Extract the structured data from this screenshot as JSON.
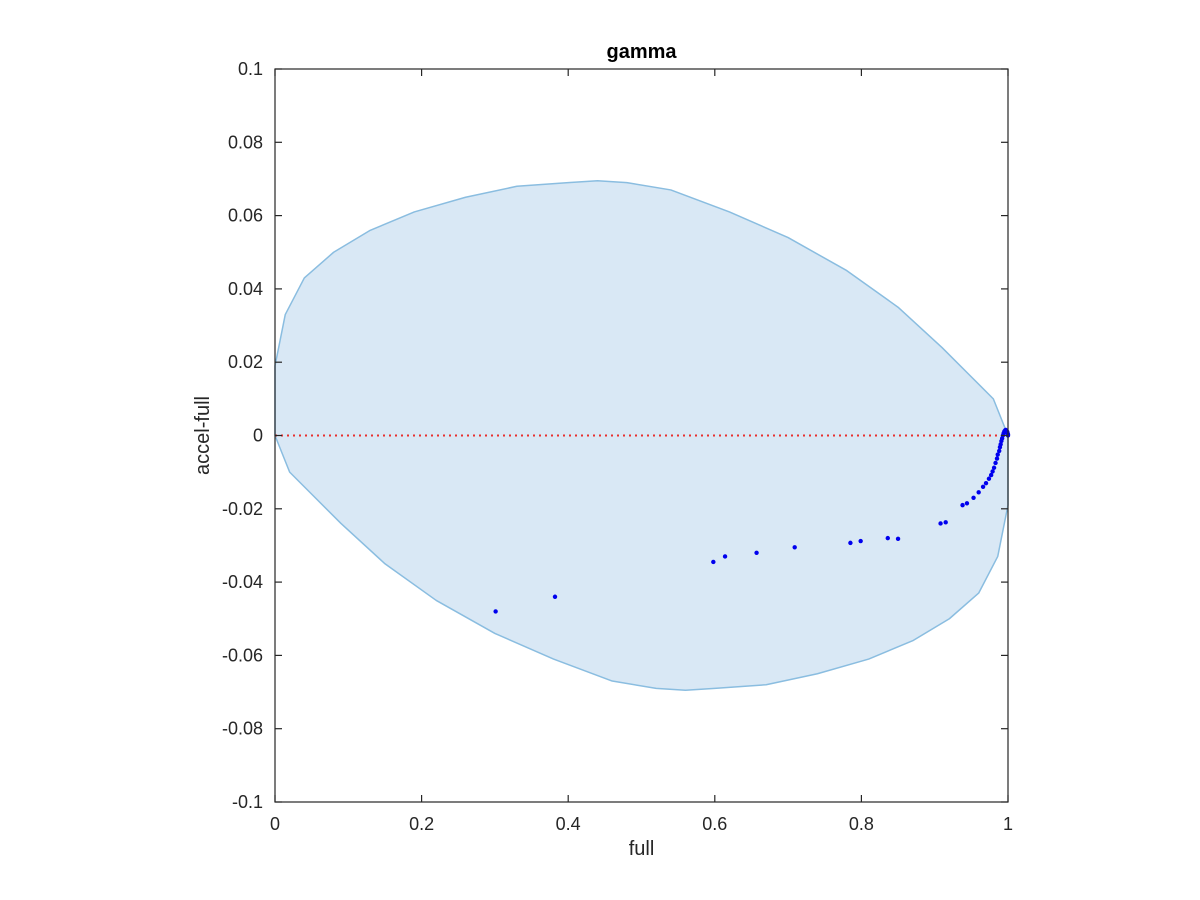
{
  "chart_data": {
    "type": "scatter",
    "title": "gamma",
    "xlabel": "full",
    "ylabel": "accel-full",
    "xlim": [
      0,
      1
    ],
    "ylim": [
      -0.1,
      0.1
    ],
    "xticks": [
      0,
      0.2,
      0.4,
      0.6,
      0.8,
      1
    ],
    "xtick_labels": [
      "0",
      "0.2",
      "0.4",
      "0.6",
      "0.8",
      "1"
    ],
    "yticks": [
      0.1,
      0.08,
      0.06,
      0.04,
      0.02,
      0,
      -0.02,
      -0.04,
      -0.06,
      -0.08,
      -0.1
    ],
    "ytick_labels": [
      "0.1",
      "0.08",
      "0.06",
      "0.04",
      "0.02",
      "0",
      "-0.02",
      "-0.04",
      "-0.06",
      "-0.08",
      "-0.1"
    ],
    "grid": false,
    "region": {
      "shape": "closed curve",
      "fill_color": "#d9e8f5",
      "edge_color": "#8abde0",
      "outline": [
        [
          0.0,
          0.019
        ],
        [
          0.014,
          0.033
        ],
        [
          0.04,
          0.043
        ],
        [
          0.08,
          0.05
        ],
        [
          0.13,
          0.056
        ],
        [
          0.19,
          0.061
        ],
        [
          0.26,
          0.065
        ],
        [
          0.33,
          0.068
        ],
        [
          0.4,
          0.069
        ],
        [
          0.44,
          0.0695
        ],
        [
          0.48,
          0.069
        ],
        [
          0.54,
          0.067
        ],
        [
          0.62,
          0.061
        ],
        [
          0.7,
          0.054
        ],
        [
          0.78,
          0.045
        ],
        [
          0.85,
          0.035
        ],
        [
          0.91,
          0.024
        ],
        [
          0.95,
          0.016
        ],
        [
          0.98,
          0.01
        ],
        [
          1.0,
          0.0
        ],
        [
          1.0,
          -0.019
        ],
        [
          0.986,
          -0.033
        ],
        [
          0.96,
          -0.043
        ],
        [
          0.92,
          -0.05
        ],
        [
          0.87,
          -0.056
        ],
        [
          0.81,
          -0.061
        ],
        [
          0.74,
          -0.065
        ],
        [
          0.67,
          -0.068
        ],
        [
          0.6,
          -0.069
        ],
        [
          0.56,
          -0.0695
        ],
        [
          0.52,
          -0.069
        ],
        [
          0.46,
          -0.067
        ],
        [
          0.38,
          -0.061
        ],
        [
          0.3,
          -0.054
        ],
        [
          0.22,
          -0.045
        ],
        [
          0.15,
          -0.035
        ],
        [
          0.09,
          -0.024
        ],
        [
          0.05,
          -0.016
        ],
        [
          0.02,
          -0.01
        ],
        [
          0.0,
          0.0
        ]
      ]
    },
    "reference_line": {
      "y": 0,
      "style": "dotted",
      "color": "#e8302e",
      "x_range": [
        0,
        1
      ]
    },
    "series": [
      {
        "color": "#0000ee",
        "points": [
          [
            0.301,
            -0.048
          ],
          [
            0.382,
            -0.044
          ],
          [
            0.598,
            -0.0345
          ],
          [
            0.614,
            -0.033
          ],
          [
            0.657,
            -0.032
          ],
          [
            0.709,
            -0.0305
          ],
          [
            0.785,
            -0.0293
          ],
          [
            0.799,
            -0.0288
          ],
          [
            0.836,
            -0.028
          ],
          [
            0.85,
            -0.0282
          ],
          [
            0.908,
            -0.024
          ],
          [
            0.915,
            -0.0237
          ],
          [
            0.938,
            -0.019
          ],
          [
            0.944,
            -0.0185
          ],
          [
            0.953,
            -0.017
          ],
          [
            0.96,
            -0.0155
          ],
          [
            0.966,
            -0.014
          ],
          [
            0.97,
            -0.013
          ],
          [
            0.974,
            -0.0118
          ],
          [
            0.977,
            -0.0108
          ],
          [
            0.979,
            -0.0098
          ],
          [
            0.981,
            -0.0088
          ],
          [
            0.983,
            -0.0075
          ],
          [
            0.985,
            -0.0063
          ],
          [
            0.986,
            -0.0052
          ],
          [
            0.988,
            -0.0042
          ],
          [
            0.989,
            -0.0032
          ],
          [
            0.99,
            -0.0024
          ],
          [
            0.991,
            -0.0015
          ],
          [
            0.992,
            -0.0008
          ],
          [
            0.993,
            0.0
          ],
          [
            0.994,
            0.0006
          ],
          [
            0.995,
            0.0011
          ],
          [
            0.996,
            0.0014
          ],
          [
            0.997,
            0.0015
          ],
          [
            0.998,
            0.0013
          ],
          [
            0.999,
            0.001
          ],
          [
            0.9995,
            0.0006
          ],
          [
            1.0,
            0.0003
          ],
          [
            1.0,
            0.0
          ]
        ]
      }
    ]
  }
}
